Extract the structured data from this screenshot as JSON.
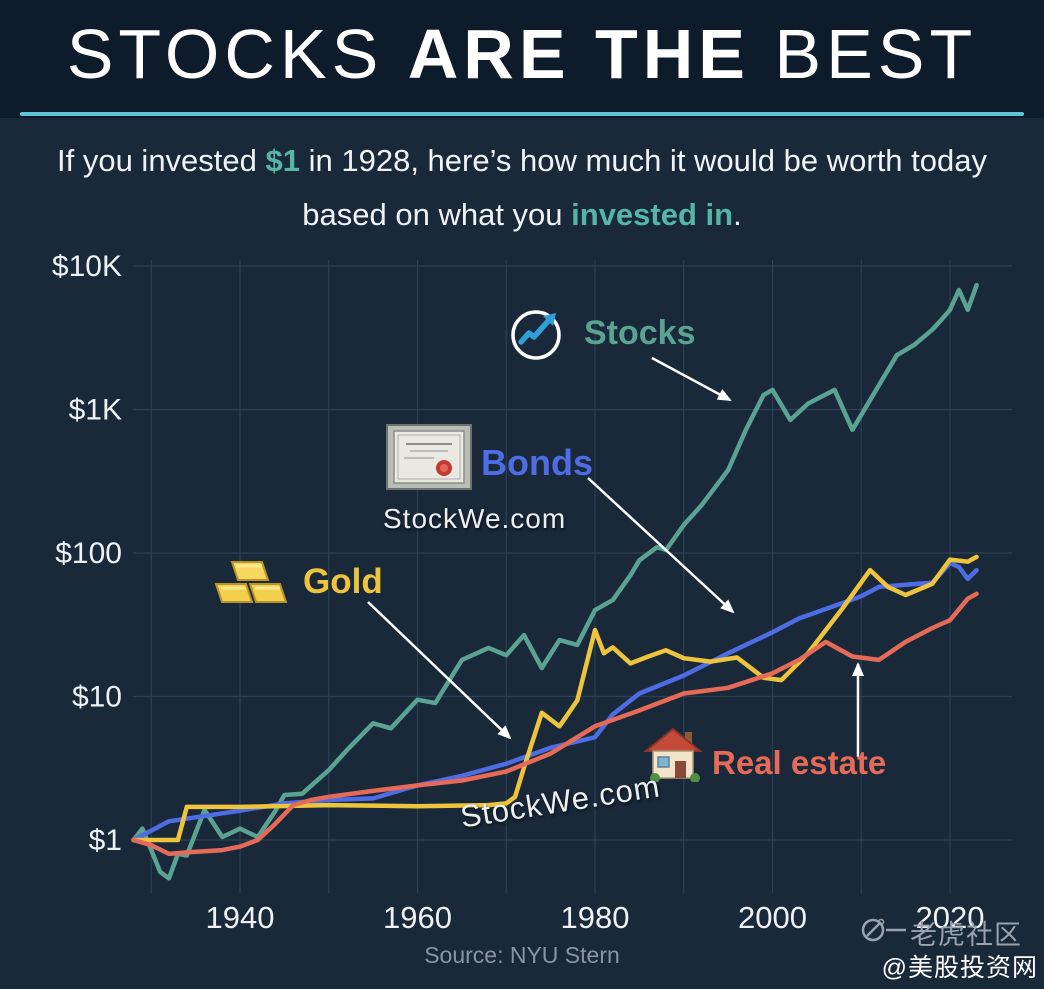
{
  "colors": {
    "background": "#1a2939",
    "header_background": "#0e1b2a",
    "divider": "#60c4d6",
    "accent": "#56b6a6",
    "watermark": "#edf0f3",
    "source": "#8a94a2",
    "branding": "#9aa2ad",
    "white": "#ffffff",
    "arrow": "#ffffff"
  },
  "header": {
    "title_light1": "STOCKS ",
    "title_bold": "ARE THE",
    "title_light2": " BEST"
  },
  "subtitle": {
    "pre": "If you invested ",
    "amount": "$1",
    "mid": " in 1928, here’s how much it would be worth today based on what you ",
    "highlight": "invested in",
    "end": "."
  },
  "chart_data": {
    "type": "line",
    "title": "",
    "xlabel": "",
    "ylabel": "",
    "y_scale": "log",
    "x_range": [
      1928,
      2023
    ],
    "x_ticks": [
      1940,
      1960,
      1980,
      2000,
      2020
    ],
    "grid_decades": [
      1930,
      1940,
      1950,
      1960,
      1970,
      1980,
      1990,
      2000,
      2010,
      2020
    ],
    "y_ticks": [
      {
        "label": "$1",
        "value": 1
      },
      {
        "label": "$10",
        "value": 10
      },
      {
        "label": "$100",
        "value": 100
      },
      {
        "label": "$1K",
        "value": 1000
      },
      {
        "label": "$10K",
        "value": 10000
      }
    ],
    "grid_color": "#2c4156",
    "legend_position": "annotated-on-chart",
    "source": "Source: NYU Stern",
    "series": [
      {
        "name": "Stocks",
        "color": "#5aa392",
        "points": [
          [
            1928,
            1.0
          ],
          [
            1929,
            1.2
          ],
          [
            1930,
            0.85
          ],
          [
            1931,
            0.6
          ],
          [
            1932,
            0.54
          ],
          [
            1933,
            0.8
          ],
          [
            1934,
            0.78
          ],
          [
            1936,
            1.62
          ],
          [
            1938,
            1.05
          ],
          [
            1940,
            1.2
          ],
          [
            1942,
            1.05
          ],
          [
            1944,
            1.6
          ],
          [
            1945,
            2.06
          ],
          [
            1947,
            2.1
          ],
          [
            1950,
            3.07
          ],
          [
            1952,
            4.2
          ],
          [
            1955,
            6.5
          ],
          [
            1957,
            6.0
          ],
          [
            1960,
            9.5
          ],
          [
            1962,
            9.0
          ],
          [
            1965,
            18
          ],
          [
            1968,
            21.8
          ],
          [
            1970,
            19.4
          ],
          [
            1972,
            26.8
          ],
          [
            1974,
            15.8
          ],
          [
            1976,
            24.7
          ],
          [
            1978,
            22.9
          ],
          [
            1980,
            40
          ],
          [
            1982,
            47
          ],
          [
            1984,
            70
          ],
          [
            1985,
            89
          ],
          [
            1987,
            110
          ],
          [
            1988,
            105
          ],
          [
            1990,
            157
          ],
          [
            1992,
            215
          ],
          [
            1995,
            378
          ],
          [
            1997,
            722
          ],
          [
            1999,
            1265
          ],
          [
            2000,
            1370
          ],
          [
            2002,
            845
          ],
          [
            2004,
            1100
          ],
          [
            2007,
            1370
          ],
          [
            2009,
            722
          ],
          [
            2012,
            1480
          ],
          [
            2014,
            2390
          ],
          [
            2016,
            2830
          ],
          [
            2018,
            3600
          ],
          [
            2019,
            4200
          ],
          [
            2020,
            4950
          ],
          [
            2021,
            6800
          ],
          [
            2022,
            4950
          ],
          [
            2023,
            7360
          ]
        ]
      },
      {
        "name": "Bonds",
        "color": "#4e6ce4",
        "points": [
          [
            1928,
            1.0
          ],
          [
            1932,
            1.35
          ],
          [
            1940,
            1.6
          ],
          [
            1945,
            1.8
          ],
          [
            1950,
            1.9
          ],
          [
            1955,
            1.95
          ],
          [
            1960,
            2.4
          ],
          [
            1965,
            2.8
          ],
          [
            1970,
            3.4
          ],
          [
            1975,
            4.4
          ],
          [
            1980,
            5.2
          ],
          [
            1982,
            7.5
          ],
          [
            1985,
            10.5
          ],
          [
            1990,
            14
          ],
          [
            1995,
            20
          ],
          [
            2000,
            28
          ],
          [
            2003,
            35
          ],
          [
            2008,
            45
          ],
          [
            2010,
            50
          ],
          [
            2012,
            58
          ],
          [
            2015,
            60
          ],
          [
            2018,
            62
          ],
          [
            2020,
            85
          ],
          [
            2021,
            80
          ],
          [
            2022,
            66
          ],
          [
            2023,
            76
          ]
        ]
      },
      {
        "name": "Gold",
        "color": "#eec43d",
        "points": [
          [
            1928,
            1.0
          ],
          [
            1933,
            1.0
          ],
          [
            1934,
            1.7
          ],
          [
            1940,
            1.7
          ],
          [
            1950,
            1.75
          ],
          [
            1960,
            1.72
          ],
          [
            1968,
            1.75
          ],
          [
            1970,
            1.8
          ],
          [
            1971,
            2.0
          ],
          [
            1972,
            3.2
          ],
          [
            1974,
            7.7
          ],
          [
            1976,
            6.2
          ],
          [
            1978,
            9.4
          ],
          [
            1980,
            29
          ],
          [
            1981,
            20
          ],
          [
            1982,
            22
          ],
          [
            1984,
            17
          ],
          [
            1986,
            19
          ],
          [
            1988,
            21
          ],
          [
            1990,
            18.5
          ],
          [
            1993,
            17.5
          ],
          [
            1996,
            18.7
          ],
          [
            1999,
            13.5
          ],
          [
            2001,
            13
          ],
          [
            2004,
            20
          ],
          [
            2006,
            29
          ],
          [
            2008,
            42
          ],
          [
            2011,
            76
          ],
          [
            2013,
            58
          ],
          [
            2015,
            51
          ],
          [
            2018,
            61
          ],
          [
            2020,
            90
          ],
          [
            2022,
            87
          ],
          [
            2023,
            94
          ]
        ]
      },
      {
        "name": "Real estate",
        "color": "#e56a58",
        "points": [
          [
            1928,
            1.0
          ],
          [
            1930,
            0.92
          ],
          [
            1932,
            0.8
          ],
          [
            1934,
            0.82
          ],
          [
            1938,
            0.85
          ],
          [
            1940,
            0.9
          ],
          [
            1942,
            1.0
          ],
          [
            1944,
            1.3
          ],
          [
            1946,
            1.75
          ],
          [
            1948,
            1.9
          ],
          [
            1950,
            2.0
          ],
          [
            1955,
            2.2
          ],
          [
            1960,
            2.4
          ],
          [
            1965,
            2.6
          ],
          [
            1970,
            3.0
          ],
          [
            1975,
            4.0
          ],
          [
            1980,
            6.2
          ],
          [
            1985,
            8.0
          ],
          [
            1990,
            10.5
          ],
          [
            1995,
            11.5
          ],
          [
            2000,
            14.5
          ],
          [
            2003,
            18
          ],
          [
            2006,
            24
          ],
          [
            2009,
            19
          ],
          [
            2012,
            18
          ],
          [
            2015,
            24
          ],
          [
            2018,
            30
          ],
          [
            2020,
            34
          ],
          [
            2022,
            48
          ],
          [
            2023,
            52
          ]
        ]
      }
    ]
  },
  "annotations": {
    "stocks": {
      "label": "Stocks",
      "color": "#5aa392"
    },
    "bonds": {
      "label": "Bonds",
      "color": "#4e6ce4"
    },
    "gold": {
      "label": "Gold",
      "color": "#eec43d"
    },
    "real_estate": {
      "label": "Real estate",
      "color": "#e56a58"
    }
  },
  "watermarks": {
    "middle": "StockWe.com",
    "bottom": "StockWe.com"
  },
  "branding": {
    "community": "老虎社区",
    "handle": "@美股投资网"
  }
}
